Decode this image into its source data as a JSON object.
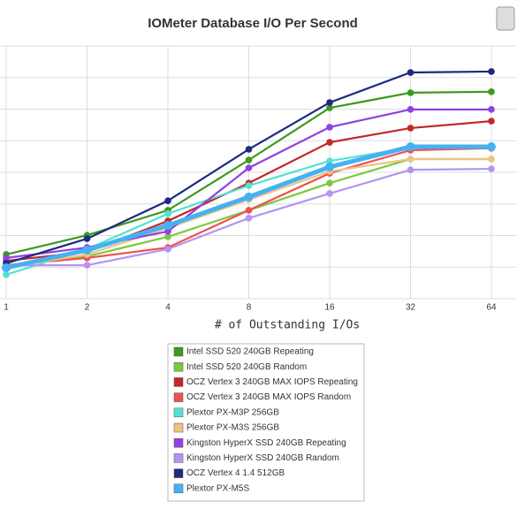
{
  "chart_data": {
    "type": "line",
    "title": "IOMeter Database I/O Per Second",
    "x_label": "# of Outstanding I/Os",
    "categories": [
      "1",
      "2",
      "4",
      "8",
      "16",
      "32",
      "64"
    ],
    "ylim": [
      0,
      8
    ],
    "grid": true,
    "series": [
      {
        "name": "Intel SSD 520 240GB Repeating",
        "color": "#3c9a1c",
        "values": [
          1.4,
          2.01,
          2.8,
          4.39,
          6.04,
          6.52,
          6.55
        ]
      },
      {
        "name": "Intel SSD 520 240GB Random",
        "color": "#7cc840",
        "values": [
          1.06,
          1.34,
          1.96,
          2.8,
          3.66,
          4.42,
          4.42
        ]
      },
      {
        "name": "OCZ Vertex 3 240GB MAX IOPS Repeating",
        "color": "#c42828",
        "values": [
          1.2,
          1.48,
          2.46,
          3.66,
          4.95,
          5.4,
          5.62
        ]
      },
      {
        "name": "OCZ Vertex 3 240GB MAX IOPS Random",
        "color": "#ec5252",
        "values": [
          1.06,
          1.29,
          1.62,
          2.8,
          3.97,
          4.7,
          4.76
        ]
      },
      {
        "name": "Plextor PX-M3P 256GB",
        "color": "#52e2d2",
        "values": [
          0.76,
          1.57,
          2.69,
          3.58,
          4.36,
          4.78,
          4.78
        ]
      },
      {
        "name": "Plextor PX-M3S 256GB",
        "color": "#f0c284",
        "values": [
          0.98,
          1.4,
          2.24,
          3.13,
          4.03,
          4.42,
          4.42
        ]
      },
      {
        "name": "Kingston HyperX SSD 240GB Repeating",
        "color": "#9042e2",
        "values": [
          1.29,
          1.62,
          2.13,
          4.14,
          5.43,
          5.99,
          5.99
        ]
      },
      {
        "name": "Kingston HyperX SSD 240GB Random",
        "color": "#b494f2",
        "values": [
          1.06,
          1.06,
          1.57,
          2.55,
          3.33,
          4.08,
          4.11
        ]
      },
      {
        "name": "OCZ Vertex 4 1.4 512GB",
        "color": "#1c2a82",
        "values": [
          1.12,
          1.9,
          3.1,
          4.73,
          6.21,
          7.16,
          7.19
        ]
      },
      {
        "name": "Plextor PX-M5S",
        "color": "#44b2f2",
        "values": [
          0.98,
          1.54,
          2.32,
          3.22,
          4.17,
          4.81,
          4.81
        ]
      }
    ]
  }
}
